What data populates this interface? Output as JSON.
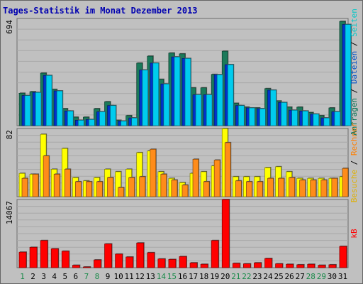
{
  "title": "Tages-Statistik im Monat Dezember 2013",
  "right_labels": {
    "p1": [
      {
        "text": "Anfragen",
        "color": "#007050"
      },
      {
        "text": " / ",
        "color": "#000000"
      },
      {
        "text": "Dateien",
        "color": "#0050c8"
      },
      {
        "text": " / ",
        "color": "#000000"
      },
      {
        "text": "Seiten",
        "color": "#00c8c8"
      }
    ],
    "p2": [
      {
        "text": "Besuche",
        "color": "#e0b000"
      },
      {
        "text": " / ",
        "color": "#000000"
      },
      {
        "text": "Rechner",
        "color": "#ff7f00"
      }
    ],
    "p3": [
      {
        "text": "kB",
        "color": "#ff0000"
      }
    ]
  },
  "chart_data": {
    "type": "bar",
    "days": [
      "1",
      "2",
      "3",
      "4",
      "5",
      "6",
      "7",
      "8",
      "9",
      "10",
      "11",
      "12",
      "13",
      "14",
      "15",
      "16",
      "17",
      "18",
      "19",
      "20",
      "21",
      "22",
      "23",
      "24",
      "25",
      "26",
      "27",
      "28",
      "29",
      "30",
      "31"
    ],
    "weekend_days": [
      "1",
      "7",
      "8",
      "14",
      "15",
      "21",
      "22",
      "28",
      "29"
    ],
    "panels": [
      {
        "ymax_label": "694",
        "ymax": 694,
        "series": [
          {
            "name": "Anfragen",
            "color": "#1a7a5a",
            "values": [
              210,
              220,
              340,
              235,
              110,
              55,
              55,
              110,
              155,
              35,
              65,
              405,
              450,
              300,
              470,
              465,
              245,
              245,
              332,
              482,
              145,
              120,
              115,
              240,
              160,
              120,
              120,
              85,
              65,
              115,
              675
            ]
          },
          {
            "name": "Dateien",
            "color": "#0033cc",
            "values": [
              195,
              215,
              325,
              225,
              95,
              35,
              40,
              90,
              130,
              30,
              50,
              360,
              405,
              270,
              445,
              435,
              200,
              200,
              330,
              395,
              130,
              115,
              110,
              230,
              150,
              100,
              95,
              75,
              50,
              90,
              655
            ]
          },
          {
            "name": "Seiten",
            "color": "#00ccee",
            "values": [
              195,
              215,
              325,
              225,
              95,
              35,
              40,
              90,
              130,
              30,
              50,
              360,
              405,
              270,
              445,
              435,
              200,
              200,
              330,
              395,
              130,
              115,
              110,
              230,
              150,
              100,
              95,
              75,
              50,
              90,
              655
            ]
          }
        ]
      },
      {
        "ymax_label": "82",
        "ymax": 82,
        "series": [
          {
            "name": "Besuche",
            "color": "#ffff00",
            "values": [
              28,
              27,
              75,
              33,
              58,
              23,
              19,
              23,
              33,
              30,
              33,
              53,
              55,
              30,
              22,
              17,
              28,
              30,
              37,
              82,
              24,
              24,
              24,
              35,
              36,
              30,
              22,
              22,
              22,
              22,
              24
            ]
          },
          {
            "name": "Rechner",
            "color": "#ff8c1a",
            "values": [
              22,
              27,
              49,
              27,
              33,
              18,
              18,
              18,
              23,
              11,
              23,
              24,
              57,
              27,
              20,
              14,
              45,
              18,
              44,
              65,
              19,
              18,
              18,
              22,
              22,
              23,
              20,
              20,
              20,
              22,
              34
            ]
          }
        ]
      },
      {
        "ymax_label": "14067",
        "ymax": 14067,
        "series": [
          {
            "name": "kB",
            "color": "#ff0000",
            "values": [
              3200,
              4200,
              5600,
              3900,
              3400,
              500,
              100,
              1600,
              4900,
              2800,
              2200,
              5100,
              3100,
              1800,
              1700,
              2300,
              1000,
              700,
              5600,
              14067,
              900,
              800,
              1000,
              1900,
              800,
              700,
              600,
              700,
              500,
              600,
              4400
            ]
          }
        ]
      }
    ]
  }
}
